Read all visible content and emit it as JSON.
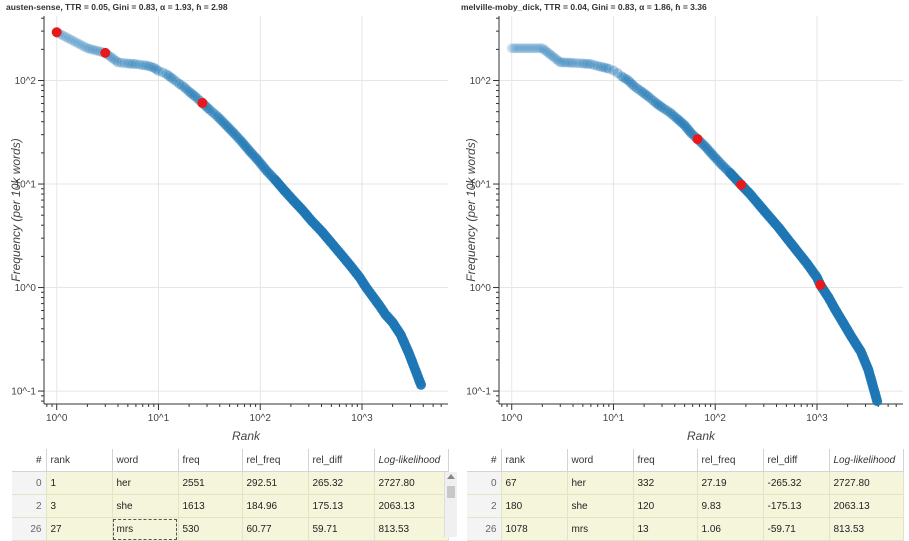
{
  "chart_data": [
    {
      "type": "scatter",
      "title": "austen-sense, TTR = 0.05, Gini = 0.83, α = 1.93, ɦ = 2.98",
      "xlabel": "Rank",
      "ylabel": "Frequency (per 10k words)",
      "xscale": "log",
      "yscale": "log",
      "xlim": [
        0.75,
        7000
      ],
      "ylim": [
        0.075,
        420
      ],
      "xticks": [
        "10^0",
        "10^1",
        "10^2",
        "10^3"
      ],
      "yticks": [
        "10^-1",
        "10^0",
        "10^1",
        "10^2"
      ],
      "grid": true,
      "series": [
        {
          "points": [
            [
              1,
              292.51
            ],
            [
              2,
              205
            ],
            [
              3,
              184.96
            ],
            [
              4,
              150
            ],
            [
              5,
              146
            ],
            [
              6,
              144
            ],
            [
              7,
              141
            ],
            [
              8,
              138
            ],
            [
              9,
              133
            ],
            [
              10,
              124
            ],
            [
              11,
              120
            ],
            [
              12,
              115
            ],
            [
              14,
              103
            ],
            [
              16,
              93
            ],
            [
              18,
              86
            ],
            [
              20,
              78
            ],
            [
              23,
              70
            ],
            [
              27,
              60.77
            ],
            [
              32,
              52
            ],
            [
              38,
              45
            ],
            [
              45,
              38
            ],
            [
              55,
              31
            ],
            [
              65,
              26
            ],
            [
              78,
              21
            ],
            [
              95,
              17
            ],
            [
              115,
              13.5
            ],
            [
              140,
              11
            ],
            [
              170,
              8.8
            ],
            [
              210,
              7
            ],
            [
              260,
              5.6
            ],
            [
              320,
              4.4
            ],
            [
              400,
              3.5
            ],
            [
              500,
              2.7
            ],
            [
              620,
              2.1
            ],
            [
              780,
              1.6
            ],
            [
              950,
              1.25
            ],
            [
              1100,
              1.0
            ],
            [
              1300,
              0.8
            ],
            [
              1500,
              0.66
            ],
            [
              1700,
              0.55
            ],
            [
              2000,
              0.46
            ],
            [
              2400,
              0.35
            ],
            [
              2900,
              0.23
            ],
            [
              3800,
              0.115
            ]
          ]
        },
        {
          "name": "highlighted",
          "points": [
            [
              1,
              292.51
            ],
            [
              3,
              184.96
            ],
            [
              27,
              60.77
            ]
          ]
        }
      ]
    },
    {
      "type": "scatter",
      "title": "melville-moby_dick, TTR = 0.04, Gini = 0.83, α = 1.86, ɦ = 3.36",
      "xlabel": "Rank",
      "ylabel": "Frequency (per 10k words)",
      "xscale": "log",
      "yscale": "log",
      "xlim": [
        0.75,
        7000
      ],
      "ylim": [
        0.075,
        420
      ],
      "xticks": [
        "10^0",
        "10^1",
        "10^2",
        "10^3"
      ],
      "yticks": [
        "10^-1",
        "10^0",
        "10^1",
        "10^2"
      ],
      "grid": true,
      "series": [
        {
          "points": [
            [
              1,
              205
            ],
            [
              2,
              205
            ],
            [
              3,
              150
            ],
            [
              4,
              148
            ],
            [
              5,
              146
            ],
            [
              6,
              144
            ],
            [
              7,
              138
            ],
            [
              8,
              134
            ],
            [
              9,
              130
            ],
            [
              10,
              125
            ],
            [
              11,
              118
            ],
            [
              12,
              110
            ],
            [
              14,
              100
            ],
            [
              16,
              88
            ],
            [
              19,
              78
            ],
            [
              22,
              70
            ],
            [
              26,
              61
            ],
            [
              30,
              55
            ],
            [
              36,
              49
            ],
            [
              42,
              43
            ],
            [
              50,
              37
            ],
            [
              58,
              31
            ],
            [
              67,
              27.19
            ],
            [
              80,
              23
            ],
            [
              95,
              19
            ],
            [
              115,
              15.5
            ],
            [
              140,
              12.8
            ],
            [
              180,
              9.83
            ],
            [
              220,
              8
            ],
            [
              270,
              6.3
            ],
            [
              330,
              5
            ],
            [
              420,
              3.8
            ],
            [
              520,
              2.9
            ],
            [
              650,
              2.2
            ],
            [
              800,
              1.7
            ],
            [
              1000,
              1.25
            ],
            [
              1078,
              1.06
            ],
            [
              1300,
              0.8
            ],
            [
              1500,
              0.62
            ],
            [
              1800,
              0.46
            ],
            [
              2200,
              0.33
            ],
            [
              2700,
              0.24
            ],
            [
              3200,
              0.16
            ],
            [
              3900,
              0.08
            ]
          ]
        },
        {
          "name": "highlighted",
          "points": [
            [
              67,
              27.19
            ],
            [
              180,
              9.83
            ],
            [
              1078,
              1.06
            ]
          ]
        }
      ]
    }
  ],
  "tables": [
    {
      "columns": [
        "#",
        "rank",
        "word",
        "freq",
        "rel_freq",
        "rel_diff",
        "Log-likelihood"
      ],
      "rows": [
        [
          "0",
          "1",
          "her",
          "2551",
          "292.51",
          "265.32",
          "2727.80"
        ],
        [
          "2",
          "3",
          "she",
          "1613",
          "184.96",
          "175.13",
          "2063.13"
        ],
        [
          "26",
          "27",
          "mrs",
          "530",
          "60.77",
          "59.71",
          "813.53"
        ]
      ]
    },
    {
      "columns": [
        "#",
        "rank",
        "word",
        "freq",
        "rel_freq",
        "rel_diff",
        "Log-likelihood"
      ],
      "rows": [
        [
          "0",
          "67",
          "her",
          "332",
          "27.19",
          "-265.32",
          "2727.80"
        ],
        [
          "2",
          "180",
          "she",
          "120",
          "9.83",
          "-175.13",
          "2063.13"
        ],
        [
          "26",
          "1078",
          "mrs",
          "13",
          "1.06",
          "-59.71",
          "813.53"
        ]
      ]
    }
  ],
  "colors": {
    "base_point": "#1f77b4",
    "highlight_point": "#e8191b",
    "table_cell": "#f5f5dc"
  }
}
